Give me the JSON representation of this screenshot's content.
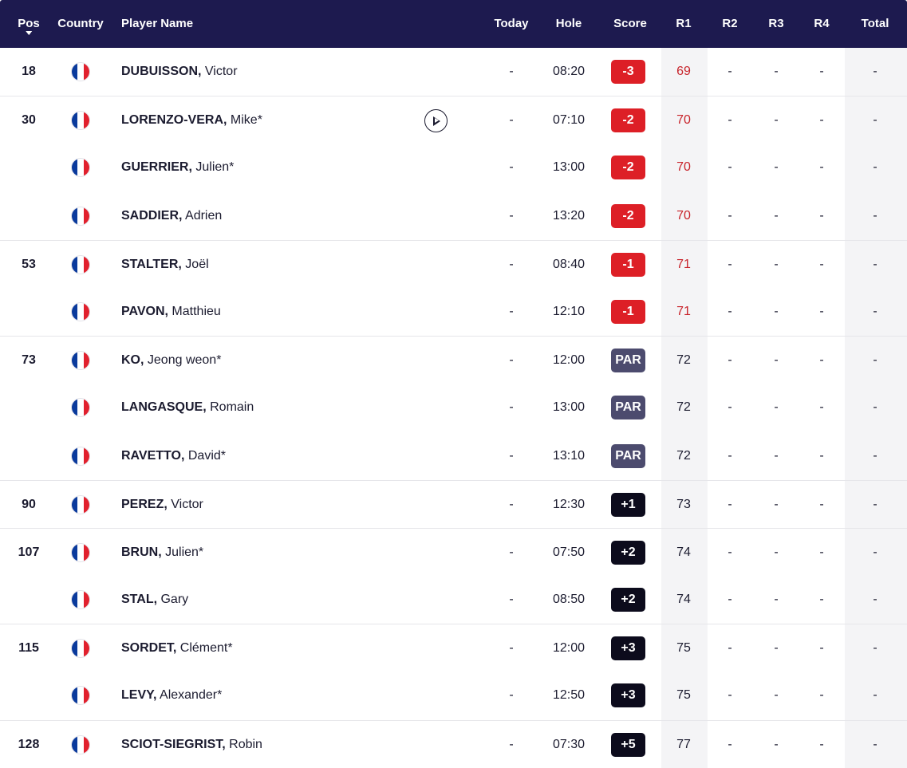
{
  "header": {
    "pos": "Pos",
    "country": "Country",
    "player_name": "Player Name",
    "today": "Today",
    "hole": "Hole",
    "score": "Score",
    "r1": "R1",
    "r2": "R2",
    "r3": "R3",
    "r4": "R4",
    "total": "Total"
  },
  "colors": {
    "header_bg": "#1d1a4f",
    "under_par": "#dd1f26",
    "par": "#4c4b6e",
    "over_par": "#0c0b1c"
  },
  "players": [
    {
      "pos": "18",
      "flag": "france-flag-icon",
      "last": "DUBUISSON,",
      "first": "Victor",
      "today": "-",
      "hole": "08:20",
      "score": "-3",
      "score_type": "under",
      "r1": "69",
      "r2": "-",
      "r3": "-",
      "r4": "-",
      "total": "-"
    },
    {
      "pos": "30",
      "flag": "france-flag-icon",
      "last": "LORENZO-VERA,",
      "first": "Mike*",
      "today": "-",
      "hole": "07:10",
      "score": "-2",
      "score_type": "under",
      "r1": "70",
      "r2": "-",
      "r3": "-",
      "r4": "-",
      "total": "-",
      "has_video": true
    },
    {
      "pos": "",
      "flag": "france-flag-icon",
      "last": "GUERRIER,",
      "first": "Julien*",
      "today": "-",
      "hole": "13:00",
      "score": "-2",
      "score_type": "under",
      "r1": "70",
      "r2": "-",
      "r3": "-",
      "r4": "-",
      "total": "-"
    },
    {
      "pos": "",
      "flag": "france-flag-icon",
      "last": "SADDIER,",
      "first": "Adrien",
      "today": "-",
      "hole": "13:20",
      "score": "-2",
      "score_type": "under",
      "r1": "70",
      "r2": "-",
      "r3": "-",
      "r4": "-",
      "total": "-"
    },
    {
      "pos": "53",
      "flag": "france-flag-icon",
      "last": "STALTER,",
      "first": "Joël",
      "today": "-",
      "hole": "08:40",
      "score": "-1",
      "score_type": "under",
      "r1": "71",
      "r2": "-",
      "r3": "-",
      "r4": "-",
      "total": "-"
    },
    {
      "pos": "",
      "flag": "france-flag-icon",
      "last": "PAVON,",
      "first": "Matthieu",
      "today": "-",
      "hole": "12:10",
      "score": "-1",
      "score_type": "under",
      "r1": "71",
      "r2": "-",
      "r3": "-",
      "r4": "-",
      "total": "-"
    },
    {
      "pos": "73",
      "flag": "france-flag-icon",
      "last": "KO,",
      "first": "Jeong weon*",
      "today": "-",
      "hole": "12:00",
      "score": "PAR",
      "score_type": "par",
      "r1": "72",
      "r2": "-",
      "r3": "-",
      "r4": "-",
      "total": "-"
    },
    {
      "pos": "",
      "flag": "france-flag-icon",
      "last": "LANGASQUE,",
      "first": "Romain",
      "today": "-",
      "hole": "13:00",
      "score": "PAR",
      "score_type": "par",
      "r1": "72",
      "r2": "-",
      "r3": "-",
      "r4": "-",
      "total": "-"
    },
    {
      "pos": "",
      "flag": "france-flag-icon",
      "last": "RAVETTO,",
      "first": "David*",
      "today": "-",
      "hole": "13:10",
      "score": "PAR",
      "score_type": "par",
      "r1": "72",
      "r2": "-",
      "r3": "-",
      "r4": "-",
      "total": "-"
    },
    {
      "pos": "90",
      "flag": "france-flag-icon",
      "last": "PEREZ,",
      "first": "Victor",
      "today": "-",
      "hole": "12:30",
      "score": "+1",
      "score_type": "over",
      "r1": "73",
      "r2": "-",
      "r3": "-",
      "r4": "-",
      "total": "-"
    },
    {
      "pos": "107",
      "flag": "france-flag-icon",
      "last": "BRUN,",
      "first": "Julien*",
      "today": "-",
      "hole": "07:50",
      "score": "+2",
      "score_type": "over",
      "r1": "74",
      "r2": "-",
      "r3": "-",
      "r4": "-",
      "total": "-"
    },
    {
      "pos": "",
      "flag": "france-flag-icon",
      "last": "STAL,",
      "first": "Gary",
      "today": "-",
      "hole": "08:50",
      "score": "+2",
      "score_type": "over",
      "r1": "74",
      "r2": "-",
      "r3": "-",
      "r4": "-",
      "total": "-"
    },
    {
      "pos": "115",
      "flag": "france-flag-icon",
      "last": "SORDET,",
      "first": "Clément*",
      "today": "-",
      "hole": "12:00",
      "score": "+3",
      "score_type": "over",
      "r1": "75",
      "r2": "-",
      "r3": "-",
      "r4": "-",
      "total": "-"
    },
    {
      "pos": "",
      "flag": "france-flag-icon",
      "last": "LEVY,",
      "first": "Alexander*",
      "today": "-",
      "hole": "12:50",
      "score": "+3",
      "score_type": "over",
      "r1": "75",
      "r2": "-",
      "r3": "-",
      "r4": "-",
      "total": "-"
    },
    {
      "pos": "128",
      "flag": "france-flag-icon",
      "last": "SCIOT-SIEGRIST,",
      "first": "Robin",
      "today": "-",
      "hole": "07:30",
      "score": "+5",
      "score_type": "over",
      "r1": "77",
      "r2": "-",
      "r3": "-",
      "r4": "-",
      "total": "-"
    }
  ]
}
